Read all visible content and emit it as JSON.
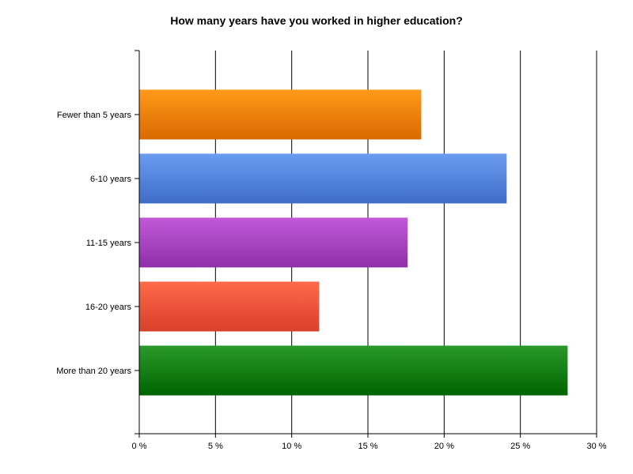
{
  "chart_data": {
    "type": "bar",
    "orientation": "horizontal",
    "title": "How many years have you worked in higher education?",
    "xlabel": "",
    "ylabel": "",
    "categories": [
      "Fewer than 5 years",
      "6-10 years",
      "11-15 years",
      "16-20 years",
      "More than 20 years"
    ],
    "values": [
      18.5,
      24.1,
      17.6,
      11.8,
      28.1
    ],
    "xlim": [
      0,
      30
    ],
    "x_ticks": [
      0,
      5,
      10,
      15,
      20,
      25,
      30
    ],
    "x_tick_labels": [
      "0 %",
      "5 %",
      "10 %",
      "15 %",
      "20 %",
      "25 %",
      "30 %"
    ],
    "grid": true,
    "legend": "none",
    "colors": [
      {
        "light": "#ff9a1a",
        "dark": "#d96a00"
      },
      {
        "light": "#6a9cf0",
        "dark": "#3f6cc8"
      },
      {
        "light": "#c259d8",
        "dark": "#8f2fa8"
      },
      {
        "light": "#ff6a4a",
        "dark": "#d8402a"
      },
      {
        "light": "#2a9a2a",
        "dark": "#006400"
      }
    ]
  }
}
